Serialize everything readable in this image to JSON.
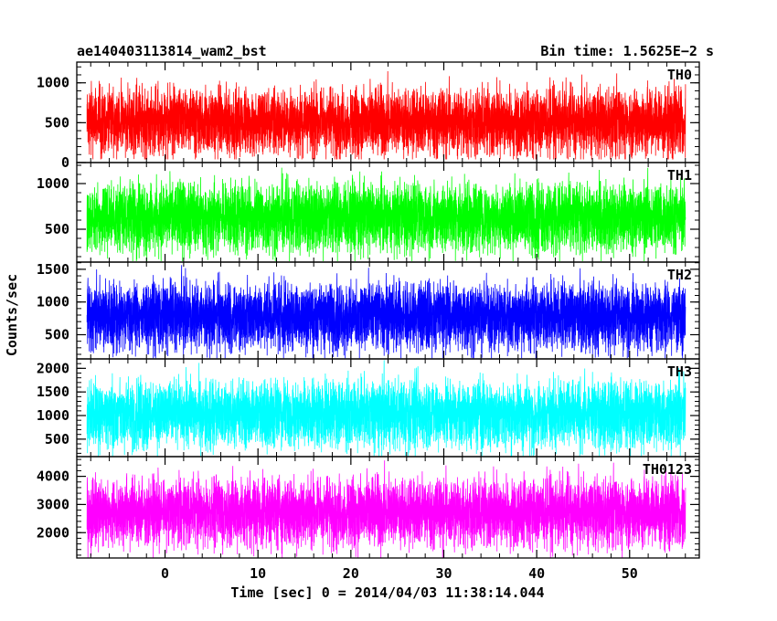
{
  "header": {
    "title": "ae140403113814_wam2_bst",
    "bin_time": "Bin time: 1.5625E−2 s"
  },
  "colors": {
    "TH0": "#ff0000",
    "TH1": "#00ff00",
    "TH2": "#0000ff",
    "TH3": "#00ffff",
    "TH0123": "#ff00ff",
    "axes": "#000000",
    "background": "#ffffff"
  },
  "chart_data": {
    "type": "line",
    "x_range": [
      -8.4,
      56.0
    ],
    "xlim": [
      -9.5,
      57.5
    ],
    "x_ticks": [
      0,
      10,
      20,
      30,
      40,
      50
    ],
    "x_tick_labels": [
      "0",
      "10",
      "20",
      "30",
      "40",
      "50"
    ],
    "xlabel": "Time [sec] 0 = 2014/04/03 11:38:14.044",
    "ylabel": "Counts/sec",
    "panels": [
      {
        "name": "TH0",
        "color": "#ff0000",
        "ylim": [
          0,
          1260
        ],
        "y_ticks": [
          0,
          500,
          1000
        ],
        "y_tick_labels": [
          "0",
          "500",
          "1000"
        ],
        "mean": 500,
        "min_value": 40,
        "max_value": 1250
      },
      {
        "name": "TH1",
        "color": "#00ff00",
        "ylim": [
          140,
          1230
        ],
        "y_ticks": [
          500,
          1000
        ],
        "y_tick_labels": [
          "500",
          "1000"
        ],
        "mean": 620,
        "min_value": 150,
        "max_value": 1220
      },
      {
        "name": "TH2",
        "color": "#0000ff",
        "ylim": [
          130,
          1610
        ],
        "y_ticks": [
          500,
          1000,
          1500
        ],
        "y_tick_labels": [
          "500",
          "1000",
          "1500"
        ],
        "mean": 770,
        "min_value": 140,
        "max_value": 1600
      },
      {
        "name": "TH3",
        "color": "#00ffff",
        "ylim": [
          130,
          2200
        ],
        "y_ticks": [
          500,
          1000,
          1500,
          2000
        ],
        "y_tick_labels": [
          "500",
          "1000",
          "1500",
          "2000"
        ],
        "mean": 1020,
        "min_value": 140,
        "max_value": 2180
      },
      {
        "name": "TH0123",
        "color": "#ff00ff",
        "ylim": [
          1100,
          4700
        ],
        "y_ticks": [
          2000,
          3000,
          4000
        ],
        "y_tick_labels": [
          "2000",
          "3000",
          "4000"
        ],
        "mean": 2700,
        "min_value": 1100,
        "max_value": 4600
      }
    ]
  }
}
